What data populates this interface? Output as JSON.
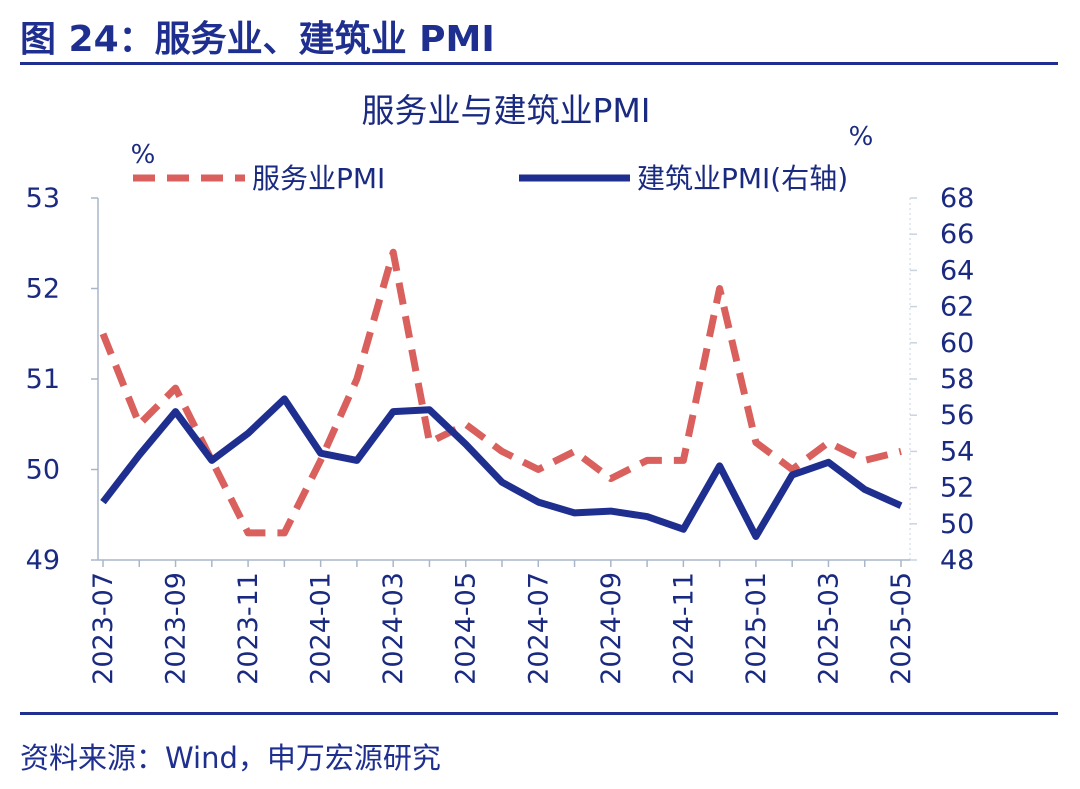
{
  "figure_heading": "图 24：服务业、建筑业 PMI",
  "source": "资料来源：Wind，申万宏源研究",
  "colors": {
    "services": "#d9605c",
    "construction": "#1f2f8f",
    "text": "#1a2a80",
    "axis": "#a9b6c9"
  },
  "chart_data": {
    "type": "line",
    "title": "服务业与建筑业PMI",
    "left_unit": "%",
    "right_unit": "%",
    "x": [
      "2023-07",
      "2023-08",
      "2023-09",
      "2023-10",
      "2023-11",
      "2023-12",
      "2024-01",
      "2024-02",
      "2024-03",
      "2024-04",
      "2024-05",
      "2024-06",
      "2024-07",
      "2024-08",
      "2024-09",
      "2024-10",
      "2024-11",
      "2024-12",
      "2025-01",
      "2025-02",
      "2025-03",
      "2025-04",
      "2025-05"
    ],
    "tick_labels": [
      "2023-07",
      "2023-09",
      "2023-11",
      "2024-01",
      "2024-03",
      "2024-05",
      "2024-07",
      "2024-09",
      "2024-11",
      "2025-01",
      "2025-03",
      "2025-05"
    ],
    "y_left": {
      "range": [
        49,
        53
      ],
      "ticks": [
        "49",
        "50",
        "51",
        "52",
        "53"
      ]
    },
    "y_right": {
      "range": [
        48,
        68
      ],
      "ticks": [
        "48",
        "50",
        "52",
        "54",
        "56",
        "58",
        "60",
        "62",
        "64",
        "66",
        "68"
      ]
    },
    "series": [
      {
        "name": "服务业PMI",
        "axis": "left",
        "style": "dashed",
        "values": [
          51.5,
          50.5,
          50.9,
          50.1,
          49.3,
          49.3,
          50.1,
          51.0,
          52.4,
          50.3,
          50.5,
          50.2,
          50.0,
          50.2,
          49.9,
          50.1,
          50.1,
          52.0,
          50.3,
          50.0,
          50.3,
          50.1,
          50.2
        ]
      },
      {
        "name": "建筑业PMI(右轴)",
        "axis": "right",
        "style": "solid",
        "values": [
          51.2,
          53.8,
          56.2,
          53.5,
          55.0,
          56.9,
          53.9,
          53.5,
          56.2,
          56.3,
          54.4,
          52.3,
          51.2,
          50.6,
          50.7,
          50.4,
          49.7,
          53.2,
          49.3,
          52.7,
          53.4,
          51.9,
          51.0
        ]
      }
    ]
  }
}
